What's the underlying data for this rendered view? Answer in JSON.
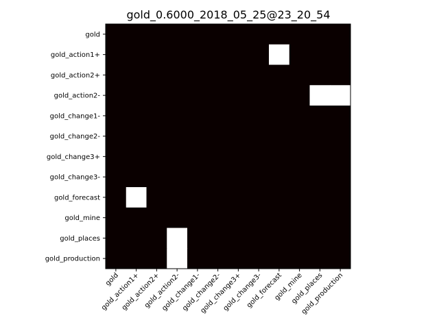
{
  "chart_data": {
    "type": "heatmap",
    "title": "gold_0.6000_2018_05_25@23_20_54",
    "xlabel": "",
    "ylabel": "",
    "x_categories": [
      "gold",
      "gold_action1+",
      "gold_action2+",
      "gold_action2-",
      "gold_change1-",
      "gold_change2-",
      "gold_change3+",
      "gold_change3-",
      "gold_forecast",
      "gold_mine",
      "gold_places",
      "gold_production"
    ],
    "y_categories": [
      "gold",
      "gold_action1+",
      "gold_action2+",
      "gold_action2-",
      "gold_change1-",
      "gold_change2-",
      "gold_change3+",
      "gold_change3-",
      "gold_forecast",
      "gold_mine",
      "gold_places",
      "gold_production"
    ],
    "values": [
      [
        0,
        0,
        0,
        0,
        0,
        0,
        0,
        0,
        0,
        0,
        0,
        0
      ],
      [
        0,
        0,
        0,
        0,
        0,
        0,
        0,
        0,
        1,
        0,
        0,
        0
      ],
      [
        0,
        0,
        0,
        0,
        0,
        0,
        0,
        0,
        0,
        0,
        0,
        0
      ],
      [
        0,
        0,
        0,
        0,
        0,
        0,
        0,
        0,
        0,
        0,
        1,
        1
      ],
      [
        0,
        0,
        0,
        0,
        0,
        0,
        0,
        0,
        0,
        0,
        0,
        0
      ],
      [
        0,
        0,
        0,
        0,
        0,
        0,
        0,
        0,
        0,
        0,
        0,
        0
      ],
      [
        0,
        0,
        0,
        0,
        0,
        0,
        0,
        0,
        0,
        0,
        0,
        0
      ],
      [
        0,
        0,
        0,
        0,
        0,
        0,
        0,
        0,
        0,
        0,
        0,
        0
      ],
      [
        0,
        1,
        0,
        0,
        0,
        0,
        0,
        0,
        0,
        0,
        0,
        0
      ],
      [
        0,
        0,
        0,
        0,
        0,
        0,
        0,
        0,
        0,
        0,
        0,
        0
      ],
      [
        0,
        0,
        0,
        1,
        0,
        0,
        0,
        0,
        0,
        0,
        0,
        0
      ],
      [
        0,
        0,
        0,
        1,
        0,
        0,
        0,
        0,
        0,
        0,
        0,
        0
      ]
    ],
    "colormap": {
      "low": "#0a0000",
      "high": "#ffffff"
    },
    "grid": false,
    "legend": "none"
  }
}
